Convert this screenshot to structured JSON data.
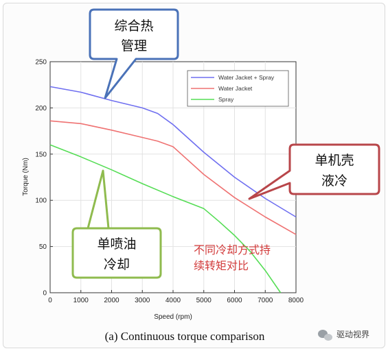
{
  "chart_data": {
    "type": "line",
    "xlabel": "Speed (rpm)",
    "ylabel": "Torque (Nm)",
    "xlim": [
      0,
      8000
    ],
    "ylim": [
      0,
      250
    ],
    "xticks": [
      "0",
      "1000",
      "2000",
      "3000",
      "4000",
      "5000",
      "6000",
      "7000",
      "8000"
    ],
    "yticks": [
      "0",
      "50",
      "100",
      "150",
      "200",
      "250"
    ],
    "grid": true,
    "legend_position": "top-right",
    "series": [
      {
        "name": "Water Jacket + Spray",
        "color": "#6f6ff0",
        "points": [
          [
            0,
            223
          ],
          [
            1000,
            217
          ],
          [
            2000,
            208
          ],
          [
            3000,
            200
          ],
          [
            3500,
            194
          ],
          [
            4000,
            182
          ],
          [
            5000,
            152
          ],
          [
            6000,
            125
          ],
          [
            7000,
            102
          ],
          [
            8000,
            82
          ]
        ]
      },
      {
        "name": "Water Jacket",
        "color": "#ef7272",
        "points": [
          [
            0,
            186
          ],
          [
            1000,
            183
          ],
          [
            2000,
            176
          ],
          [
            3000,
            168
          ],
          [
            3500,
            164
          ],
          [
            4000,
            158
          ],
          [
            5000,
            128
          ],
          [
            6000,
            103
          ],
          [
            7000,
            82
          ],
          [
            8000,
            63
          ]
        ]
      },
      {
        "name": "Spray",
        "color": "#55dd55",
        "points": [
          [
            0,
            160
          ],
          [
            1000,
            147
          ],
          [
            2000,
            133
          ],
          [
            3000,
            118
          ],
          [
            4000,
            104
          ],
          [
            5000,
            91
          ],
          [
            5500,
            77
          ],
          [
            6000,
            62
          ],
          [
            6500,
            45
          ],
          [
            7000,
            24
          ],
          [
            7500,
            0
          ]
        ]
      }
    ],
    "caption": "(a) Continuous torque comparison"
  },
  "callouts": {
    "integrated": {
      "line1": "综合热",
      "line2": "管理"
    },
    "housing": {
      "line1": "单机壳",
      "line2": "液冷"
    },
    "oil": {
      "line1": "单喷油",
      "line2": "冷却"
    }
  },
  "annotation": {
    "line1": "不同冷却方式持",
    "line2": "续转矩对比"
  },
  "watermark": {
    "text": "驱动视界",
    "icon": "wechat-icon"
  }
}
